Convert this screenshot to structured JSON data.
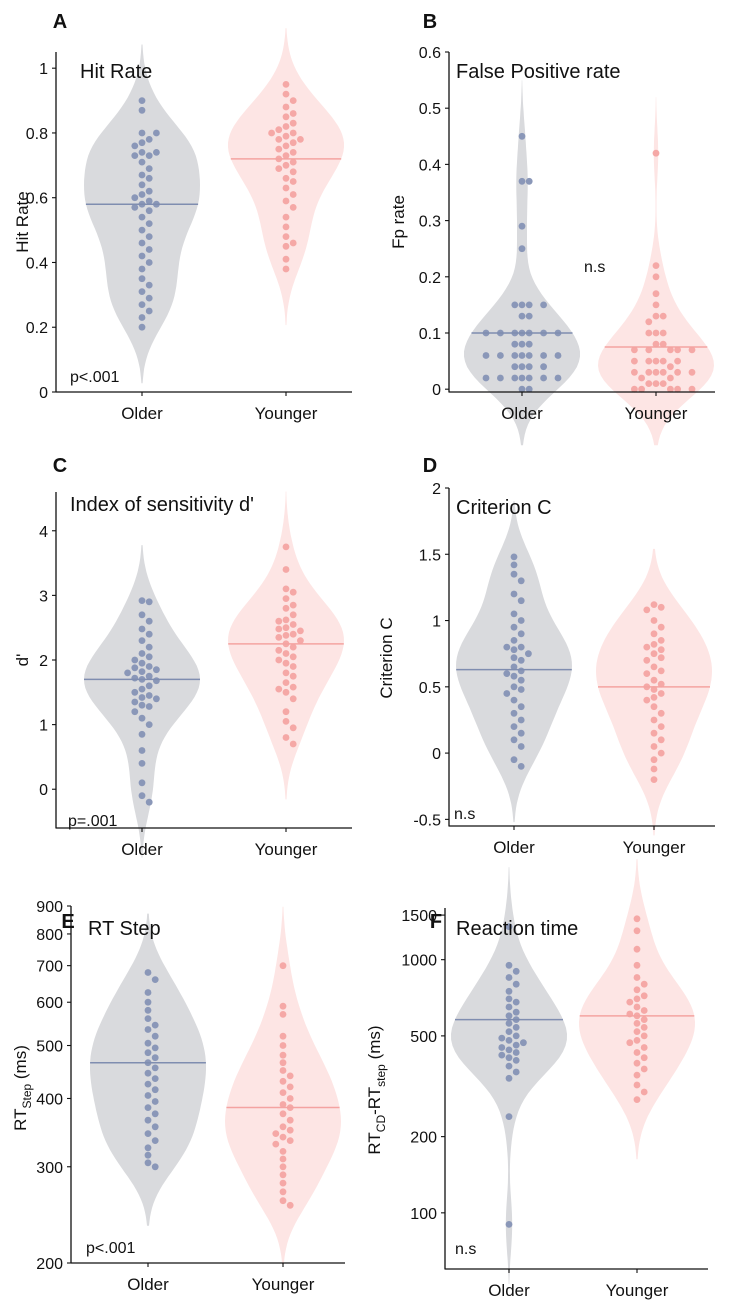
{
  "figure": {
    "colors": {
      "older_violin": "#d9dadd",
      "older_dot": "#8a97b8",
      "older_median": "#7f8db0",
      "younger_violin": "#fde5e4",
      "younger_dot": "#f5a8a6",
      "younger_median": "#f4a3a1",
      "axis": "#111111"
    }
  },
  "chart_data": [
    {
      "panel": "A",
      "type": "violin",
      "title": "Hit Rate",
      "ylabel": "Hit Rate",
      "categories": [
        "Older",
        "Younger"
      ],
      "ylim": [
        0,
        1.05
      ],
      "yscale": "linear",
      "yticks": [
        0,
        0.2,
        0.4,
        0.6,
        0.8,
        1
      ],
      "ytick_labels": [
        "0",
        "0.2",
        "0.4",
        "0.6",
        "0.8",
        "1"
      ],
      "annotation": "p<.001",
      "series": [
        {
          "name": "Older",
          "median": 0.58,
          "values": [
            0.9,
            0.87,
            0.8,
            0.8,
            0.78,
            0.77,
            0.76,
            0.74,
            0.74,
            0.73,
            0.73,
            0.71,
            0.69,
            0.67,
            0.66,
            0.64,
            0.62,
            0.61,
            0.6,
            0.59,
            0.58,
            0.58,
            0.57,
            0.56,
            0.54,
            0.52,
            0.5,
            0.48,
            0.46,
            0.44,
            0.42,
            0.4,
            0.38,
            0.35,
            0.33,
            0.31,
            0.29,
            0.27,
            0.25,
            0.23,
            0.2
          ]
        },
        {
          "name": "Younger",
          "median": 0.72,
          "values": [
            0.95,
            0.92,
            0.9,
            0.88,
            0.86,
            0.85,
            0.83,
            0.82,
            0.81,
            0.8,
            0.8,
            0.79,
            0.78,
            0.78,
            0.77,
            0.76,
            0.75,
            0.74,
            0.73,
            0.72,
            0.71,
            0.7,
            0.69,
            0.68,
            0.66,
            0.65,
            0.63,
            0.61,
            0.59,
            0.57,
            0.54,
            0.51,
            0.48,
            0.46,
            0.45,
            0.41,
            0.38
          ]
        }
      ]
    },
    {
      "panel": "B",
      "type": "violin",
      "title": "False Positive rate",
      "ylabel": "Fp rate",
      "categories": [
        "Older",
        "Younger"
      ],
      "ylim": [
        -0.005,
        0.6
      ],
      "yscale": "linear",
      "yticks": [
        0,
        0.1,
        0.2,
        0.3,
        0.4,
        0.5,
        0.6
      ],
      "ytick_labels": [
        "0",
        "0.1",
        "0.2",
        "0.3",
        "0.4",
        "0.5",
        "0.6"
      ],
      "annotation": "n.s",
      "series": [
        {
          "name": "Older",
          "median": 0.1,
          "values": [
            0.45,
            0.37,
            0.37,
            0.29,
            0.25,
            0.15,
            0.15,
            0.15,
            0.15,
            0.13,
            0.13,
            0.1,
            0.1,
            0.1,
            0.1,
            0.1,
            0.1,
            0.1,
            0.08,
            0.08,
            0.08,
            0.06,
            0.06,
            0.06,
            0.06,
            0.06,
            0.06,
            0.06,
            0.04,
            0.04,
            0.04,
            0.04,
            0.02,
            0.02,
            0.02,
            0.02,
            0.02,
            0.02,
            0.02,
            0.0,
            0.0
          ]
        },
        {
          "name": "Younger",
          "median": 0.075,
          "values": [
            0.42,
            0.22,
            0.2,
            0.17,
            0.15,
            0.13,
            0.13,
            0.12,
            0.1,
            0.1,
            0.1,
            0.08,
            0.08,
            0.07,
            0.07,
            0.07,
            0.07,
            0.07,
            0.05,
            0.05,
            0.05,
            0.05,
            0.05,
            0.04,
            0.03,
            0.03,
            0.03,
            0.03,
            0.03,
            0.03,
            0.02,
            0.02,
            0.01,
            0.01,
            0.01,
            0.0,
            0.0,
            0.0,
            0.0,
            0.0
          ]
        }
      ]
    },
    {
      "panel": "C",
      "type": "violin",
      "title": "Index of sensitivity d'",
      "ylabel": "d'",
      "categories": [
        "Older",
        "Younger"
      ],
      "ylim": [
        -0.6,
        4.6
      ],
      "yscale": "linear",
      "yticks": [
        0,
        1,
        2,
        3,
        4
      ],
      "ytick_labels": [
        "0",
        "1",
        "2",
        "3",
        "4"
      ],
      "annotation": "p=.001",
      "series": [
        {
          "name": "Older",
          "median": 1.7,
          "values": [
            2.92,
            2.9,
            2.7,
            2.6,
            2.48,
            2.4,
            2.3,
            2.2,
            2.1,
            2.05,
            2.0,
            1.95,
            1.9,
            1.88,
            1.85,
            1.82,
            1.8,
            1.75,
            1.72,
            1.7,
            1.68,
            1.6,
            1.55,
            1.5,
            1.45,
            1.42,
            1.4,
            1.35,
            1.3,
            1.28,
            1.2,
            1.1,
            1.0,
            0.85,
            0.6,
            0.4,
            0.1,
            -0.1,
            -0.2
          ]
        },
        {
          "name": "Younger",
          "median": 2.25,
          "values": [
            3.75,
            3.4,
            3.1,
            3.05,
            2.95,
            2.85,
            2.8,
            2.7,
            2.62,
            2.6,
            2.55,
            2.5,
            2.48,
            2.45,
            2.4,
            2.38,
            2.35,
            2.3,
            2.25,
            2.2,
            2.15,
            2.1,
            2.05,
            2.0,
            1.95,
            1.9,
            1.8,
            1.75,
            1.65,
            1.58,
            1.55,
            1.5,
            1.4,
            1.2,
            1.05,
            0.95,
            0.8,
            0.7
          ]
        }
      ]
    },
    {
      "panel": "D",
      "type": "violin",
      "title": "Criterion C",
      "ylabel": "Criterion C",
      "categories": [
        "Older",
        "Younger"
      ],
      "ylim": [
        -0.55,
        2.0
      ],
      "yscale": "linear",
      "yticks": [
        -0.5,
        0,
        0.5,
        1,
        1.5,
        2
      ],
      "ytick_labels": [
        "-0.5",
        "0",
        "0.5",
        "1",
        "1.5",
        "2"
      ],
      "annotation": "n.s",
      "series": [
        {
          "name": "Older",
          "median": 0.63,
          "values": [
            1.48,
            1.42,
            1.35,
            1.3,
            1.2,
            1.15,
            1.05,
            1.0,
            0.95,
            0.9,
            0.85,
            0.8,
            0.8,
            0.78,
            0.75,
            0.72,
            0.7,
            0.65,
            0.62,
            0.6,
            0.58,
            0.55,
            0.5,
            0.48,
            0.45,
            0.4,
            0.35,
            0.3,
            0.25,
            0.2,
            0.15,
            0.1,
            0.05,
            -0.05,
            -0.1
          ]
        },
        {
          "name": "Younger",
          "median": 0.5,
          "values": [
            1.12,
            1.1,
            1.08,
            1.0,
            0.95,
            0.9,
            0.85,
            0.82,
            0.8,
            0.78,
            0.75,
            0.72,
            0.7,
            0.65,
            0.62,
            0.6,
            0.55,
            0.52,
            0.5,
            0.48,
            0.45,
            0.42,
            0.4,
            0.35,
            0.3,
            0.25,
            0.2,
            0.15,
            0.1,
            0.05,
            0.0,
            -0.05,
            -0.12,
            -0.2
          ]
        }
      ]
    },
    {
      "panel": "E",
      "type": "violin",
      "title": "RT Step",
      "ylabel": "RT",
      "ylabel_sub": "Step",
      "ylabel_unit": "(ms)",
      "categories": [
        "Older",
        "Younger"
      ],
      "ylim": [
        200,
        900
      ],
      "yscale": "log",
      "yticks": [
        200,
        300,
        400,
        500,
        600,
        700,
        800,
        900
      ],
      "ytick_labels": [
        "200",
        "300",
        "400",
        "500",
        "600",
        "700",
        "800",
        "900"
      ],
      "annotation": "p<.001",
      "series": [
        {
          "name": "Older",
          "median": 465,
          "values": [
            680,
            660,
            625,
            600,
            580,
            560,
            545,
            535,
            520,
            505,
            495,
            485,
            475,
            465,
            455,
            445,
            435,
            425,
            415,
            405,
            395,
            385,
            375,
            365,
            355,
            345,
            335,
            325,
            315,
            305,
            300
          ]
        },
        {
          "name": "Younger",
          "median": 385,
          "values": [
            700,
            590,
            570,
            520,
            500,
            480,
            465,
            450,
            440,
            430,
            420,
            410,
            400,
            390,
            385,
            375,
            365,
            355,
            350,
            345,
            340,
            335,
            330,
            320,
            310,
            300,
            290,
            280,
            270,
            260,
            255
          ]
        }
      ]
    },
    {
      "panel": "F",
      "type": "violin",
      "title": "Reaction time",
      "ylabel": "RT",
      "ylabel_sub": "CD",
      "ylabel_mid": "-RT",
      "ylabel_sub2": "step",
      "ylabel_unit": "(ms)",
      "categories": [
        "Older",
        "Younger"
      ],
      "ylim": [
        60,
        1600
      ],
      "yscale": "log",
      "yticks": [
        100,
        200,
        500,
        1000,
        1500
      ],
      "ytick_labels": [
        "100",
        "200",
        "500",
        "1000",
        "1500"
      ],
      "annotation": "n.s",
      "series": [
        {
          "name": "Older",
          "median": 580,
          "values": [
            1350,
            950,
            900,
            850,
            800,
            750,
            700,
            680,
            650,
            620,
            600,
            580,
            560,
            540,
            520,
            500,
            490,
            480,
            470,
            460,
            450,
            440,
            430,
            420,
            410,
            400,
            380,
            360,
            340,
            240,
            90
          ]
        },
        {
          "name": "Younger",
          "median": 600,
          "values": [
            1450,
            1300,
            1100,
            950,
            850,
            800,
            760,
            720,
            700,
            680,
            650,
            630,
            610,
            600,
            580,
            560,
            540,
            520,
            500,
            480,
            470,
            450,
            430,
            410,
            390,
            370,
            350,
            320,
            300,
            280
          ]
        }
      ]
    }
  ]
}
